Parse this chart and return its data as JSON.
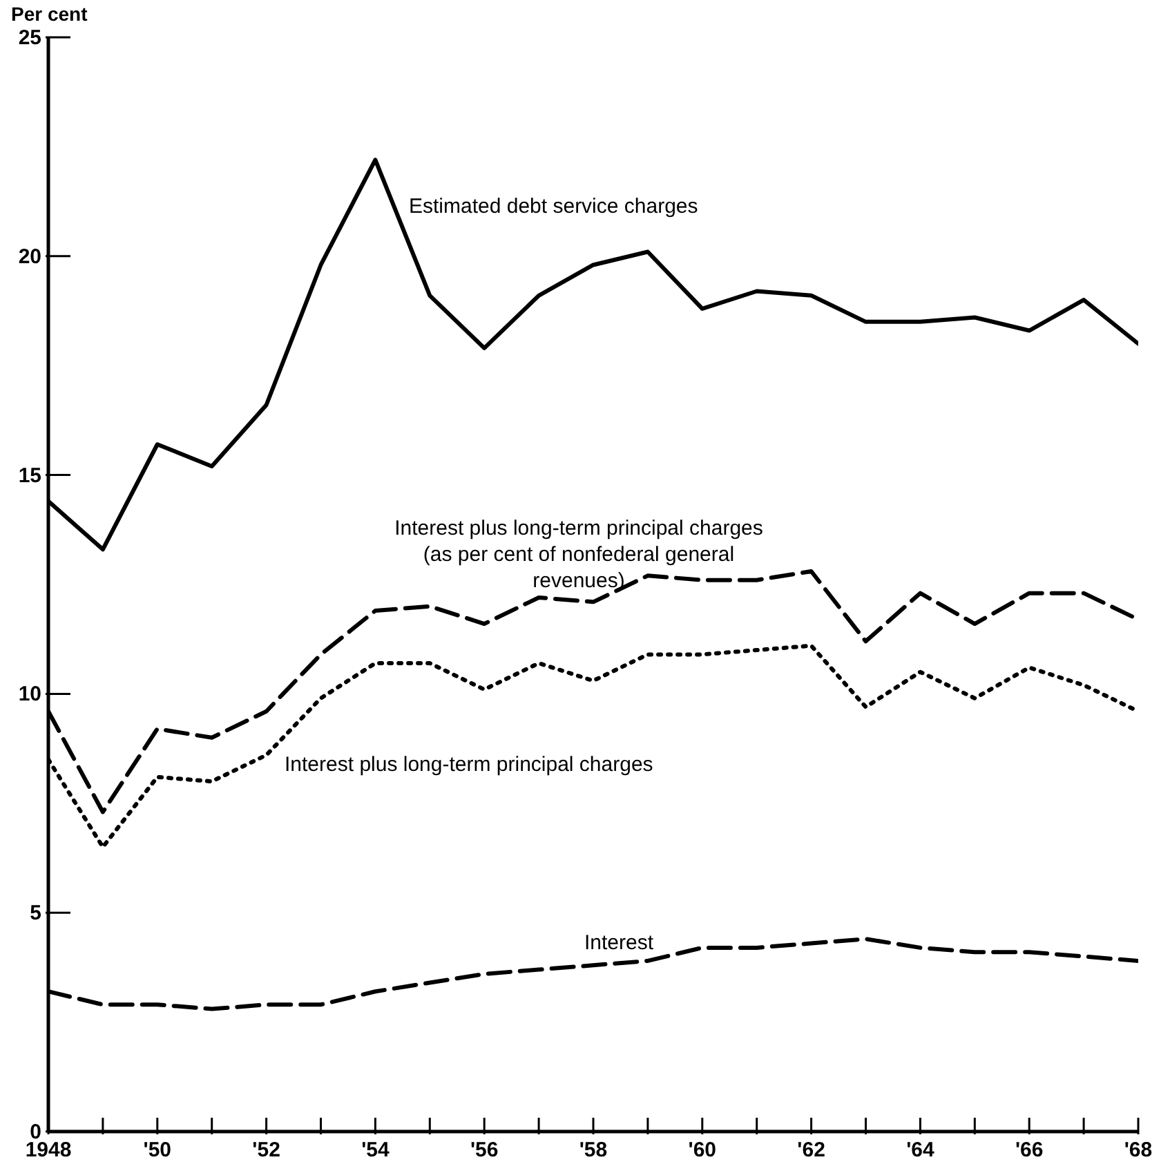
{
  "chart_data": {
    "type": "line",
    "ylabel": "Per cent",
    "x": [
      1948,
      1949,
      1950,
      1951,
      1952,
      1953,
      1954,
      1955,
      1956,
      1957,
      1958,
      1959,
      1960,
      1961,
      1962,
      1963,
      1964,
      1965,
      1966,
      1967,
      1968
    ],
    "series": [
      {
        "name": "Estimated debt service charges",
        "color": "#000000",
        "line_style": "solid",
        "values": [
          14.4,
          13.3,
          15.7,
          15.2,
          16.6,
          19.8,
          22.2,
          19.1,
          17.9,
          19.1,
          19.8,
          20.1,
          18.8,
          19.2,
          19.1,
          18.5,
          18.5,
          18.6,
          18.3,
          19.0,
          18.0
        ]
      },
      {
        "name": "Interest plus long-term principal charges (as per cent of nonfederal general revenues)",
        "color": "#000000",
        "line_style": "dashed",
        "values": [
          9.6,
          7.3,
          9.2,
          9.0,
          9.6,
          10.9,
          11.9,
          12.0,
          11.6,
          12.2,
          12.1,
          12.7,
          12.6,
          12.6,
          12.8,
          11.2,
          12.3,
          11.6,
          12.3,
          12.3,
          11.7
        ]
      },
      {
        "name": "Interest plus long-term principal charges",
        "color": "#000000",
        "line_style": "dotted",
        "values": [
          8.5,
          6.5,
          8.1,
          8.0,
          8.6,
          9.9,
          10.7,
          10.7,
          10.1,
          10.7,
          10.3,
          10.9,
          10.9,
          11.0,
          11.1,
          9.7,
          10.5,
          9.9,
          10.6,
          10.2,
          9.6
        ]
      },
      {
        "name": "Interest",
        "color": "#000000",
        "line_style": "dashed",
        "values": [
          3.2,
          2.9,
          2.9,
          2.8,
          2.9,
          2.9,
          3.2,
          3.4,
          3.6,
          3.7,
          3.8,
          3.9,
          4.2,
          4.2,
          4.3,
          4.4,
          4.2,
          4.1,
          4.1,
          4.0,
          3.9
        ]
      }
    ],
    "xlim": [
      1948,
      1968
    ],
    "xticks": [
      1948,
      {
        "value": 1949,
        "label": null
      },
      {
        "value": 1950,
        "label": "'50"
      },
      {
        "value": 1951,
        "label": null
      },
      {
        "value": 1952,
        "label": "'52"
      },
      {
        "value": 1953,
        "label": null
      },
      {
        "value": 1954,
        "label": "'54"
      },
      {
        "value": 1955,
        "label": null
      },
      {
        "value": 1956,
        "label": "'56"
      },
      {
        "value": 1957,
        "label": null
      },
      {
        "value": 1958,
        "label": "'58"
      },
      {
        "value": 1959,
        "label": null
      },
      {
        "value": 1960,
        "label": "'60"
      },
      {
        "value": 1961,
        "label": null
      },
      {
        "value": 1962,
        "label": "'62"
      },
      {
        "value": 1963,
        "label": null
      },
      {
        "value": 1964,
        "label": "'64"
      },
      {
        "value": 1965,
        "label": null
      },
      {
        "value": 1966,
        "label": "'66"
      },
      {
        "value": 1967,
        "label": null
      },
      {
        "value": 1968,
        "label": "'68"
      }
    ],
    "ylim": [
      0,
      25
    ],
    "yticks": [
      0,
      5,
      10,
      15,
      20,
      25
    ],
    "marker": "none"
  }
}
